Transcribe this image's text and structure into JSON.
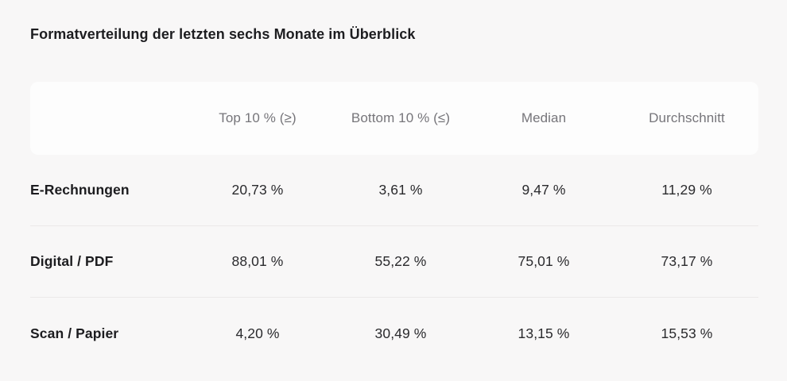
{
  "page": {
    "title": "Formatverteilung der letzten sechs Monate im Überblick",
    "background_color": "#f8f7f7",
    "header_band_color": "#fdfdfd",
    "divider_color": "#ebe9e9",
    "header_text_color": "#76757a",
    "body_text_color": "#1c1c1f"
  },
  "table": {
    "columns": {
      "label": "",
      "col1": "Top 10 % (≥)",
      "col2": "Bottom 10 % (≤)",
      "col3": "Median",
      "col4": "Durchschnitt"
    },
    "rows": [
      {
        "label": "E-Rechnungen",
        "values": [
          "20,73 %",
          "3,61 %",
          "9,47 %",
          "11,29 %"
        ]
      },
      {
        "label": "Digital / PDF",
        "values": [
          "88,01 %",
          "55,22 %",
          "75,01 %",
          "73,17 %"
        ]
      },
      {
        "label": "Scan / Papier",
        "values": [
          "4,20 %",
          "30,49 %",
          "13,15 %",
          "15,53 %"
        ]
      }
    ]
  },
  "chart_data": {
    "type": "table",
    "title": "Formatverteilung der letzten sechs Monate im Überblick",
    "columns": [
      "Top 10 % (≥)",
      "Bottom 10 % (≤)",
      "Median",
      "Durchschnitt"
    ],
    "row_labels": [
      "E-Rechnungen",
      "Digital / PDF",
      "Scan / Papier"
    ],
    "values_percent": [
      [
        20.73,
        3.61,
        9.47,
        11.29
      ],
      [
        88.01,
        55.22,
        75.01,
        73.17
      ],
      [
        4.2,
        30.49,
        13.15,
        15.53
      ]
    ],
    "unit": "%"
  }
}
